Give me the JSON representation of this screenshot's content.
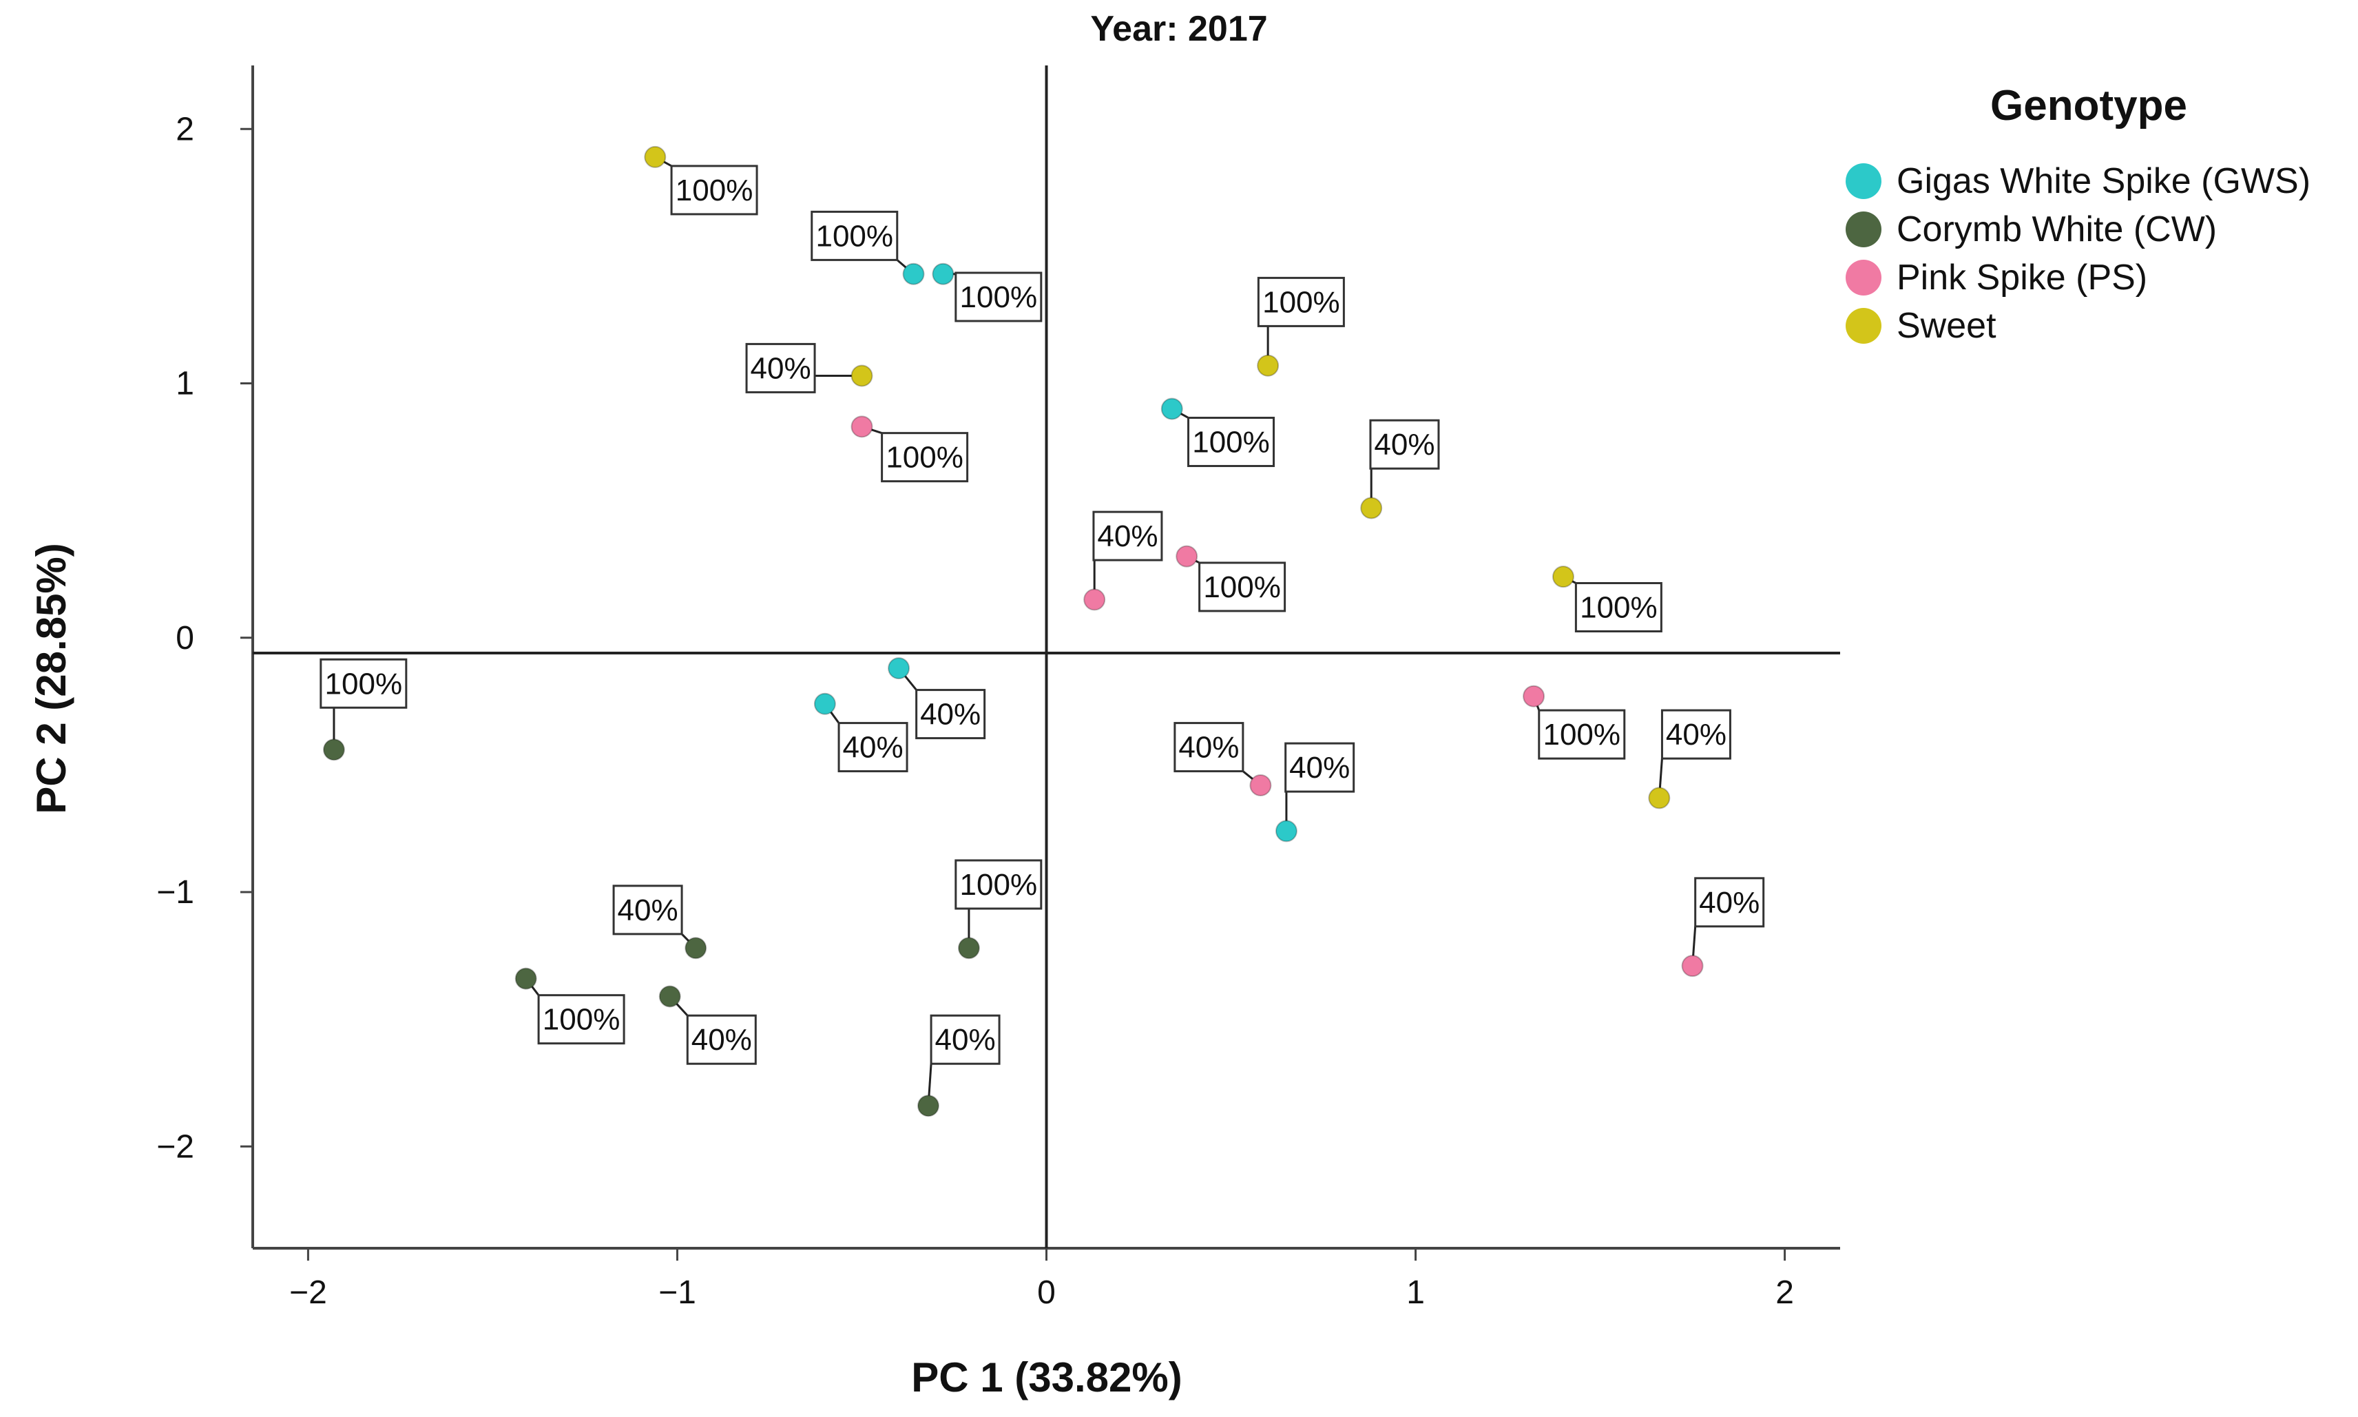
{
  "chart_data": {
    "type": "scatter",
    "title": "Year: 2017",
    "xlabel": "PC 1 (33.82%)",
    "ylabel": "PC 2 (28.85%)",
    "xlim": [
      -2.15,
      2.15
    ],
    "ylim": [
      -2.4,
      2.25
    ],
    "xticks": [
      -2,
      -1,
      0,
      1,
      2
    ],
    "yticks": [
      2,
      1,
      0,
      -1,
      -2
    ],
    "xtick_labels": [
      "−2",
      "−1",
      "0",
      "1",
      "2"
    ],
    "ytick_labels": [
      "2",
      "1",
      "0",
      "−1",
      "−2"
    ],
    "reference_lines": {
      "x": 0,
      "y": -0.06
    },
    "legend_title": "Genotype",
    "legend_position": "right",
    "series": [
      {
        "name": "Gigas White Spike (GWS)",
        "color": "#2cc9c9",
        "points": [
          {
            "x": -0.36,
            "y": 1.43,
            "label": "100%",
            "lx": -0.52,
            "ly": 1.58
          },
          {
            "x": -0.28,
            "y": 1.43,
            "label": "100%",
            "lx": -0.13,
            "ly": 1.34
          },
          {
            "x": 0.34,
            "y": 0.9,
            "label": "100%",
            "lx": 0.5,
            "ly": 0.77
          },
          {
            "x": -0.4,
            "y": -0.12,
            "label": "40%",
            "lx": -0.26,
            "ly": -0.3
          },
          {
            "x": -0.6,
            "y": -0.26,
            "label": "40%",
            "lx": -0.47,
            "ly": -0.43
          },
          {
            "x": 0.65,
            "y": -0.76,
            "label": "40%",
            "lx": 0.74,
            "ly": -0.51
          }
        ]
      },
      {
        "name": "Corymb White (CW)",
        "color": "#4d6641",
        "points": [
          {
            "x": -1.93,
            "y": -0.44,
            "label": "100%",
            "lx": -1.85,
            "ly": -0.18
          },
          {
            "x": -0.21,
            "y": -1.22,
            "label": "100%",
            "lx": -0.13,
            "ly": -0.97
          },
          {
            "x": -1.41,
            "y": -1.34,
            "label": "100%",
            "lx": -1.26,
            "ly": -1.5
          },
          {
            "x": -0.95,
            "y": -1.22,
            "label": "40%",
            "lx": -1.08,
            "ly": -1.07
          },
          {
            "x": -1.02,
            "y": -1.41,
            "label": "40%",
            "lx": -0.88,
            "ly": -1.58
          },
          {
            "x": -0.32,
            "y": -1.84,
            "label": "40%",
            "lx": -0.22,
            "ly": -1.58
          }
        ]
      },
      {
        "name": "Pink Spike (PS)",
        "color": "#f07aa3",
        "points": [
          {
            "x": -0.5,
            "y": 0.83,
            "label": "100%",
            "lx": -0.33,
            "ly": 0.71
          },
          {
            "x": 0.38,
            "y": 0.32,
            "label": "100%",
            "lx": 0.53,
            "ly": 0.2
          },
          {
            "x": 0.13,
            "y": 0.15,
            "label": "40%",
            "lx": 0.22,
            "ly": 0.4
          },
          {
            "x": 1.32,
            "y": -0.23,
            "label": "100%",
            "lx": 1.45,
            "ly": -0.38
          },
          {
            "x": 0.58,
            "y": -0.58,
            "label": "40%",
            "lx": 0.44,
            "ly": -0.43
          },
          {
            "x": 1.75,
            "y": -1.29,
            "label": "40%",
            "lx": 1.85,
            "ly": -1.04
          }
        ]
      },
      {
        "name": "Sweet",
        "color": "#d3c51a",
        "points": [
          {
            "x": -1.06,
            "y": 1.89,
            "label": "100%",
            "lx": -0.9,
            "ly": 1.76
          },
          {
            "x": -0.5,
            "y": 1.03,
            "label": "40%",
            "lx": -0.72,
            "ly": 1.06
          },
          {
            "x": 0.6,
            "y": 1.07,
            "label": "100%",
            "lx": 0.69,
            "ly": 1.32
          },
          {
            "x": 0.88,
            "y": 0.51,
            "label": "40%",
            "lx": 0.97,
            "ly": 0.76
          },
          {
            "x": 1.4,
            "y": 0.24,
            "label": "100%",
            "lx": 1.55,
            "ly": 0.12
          },
          {
            "x": 1.66,
            "y": -0.63,
            "label": "40%",
            "lx": 1.76,
            "ly": -0.38
          }
        ]
      }
    ]
  }
}
